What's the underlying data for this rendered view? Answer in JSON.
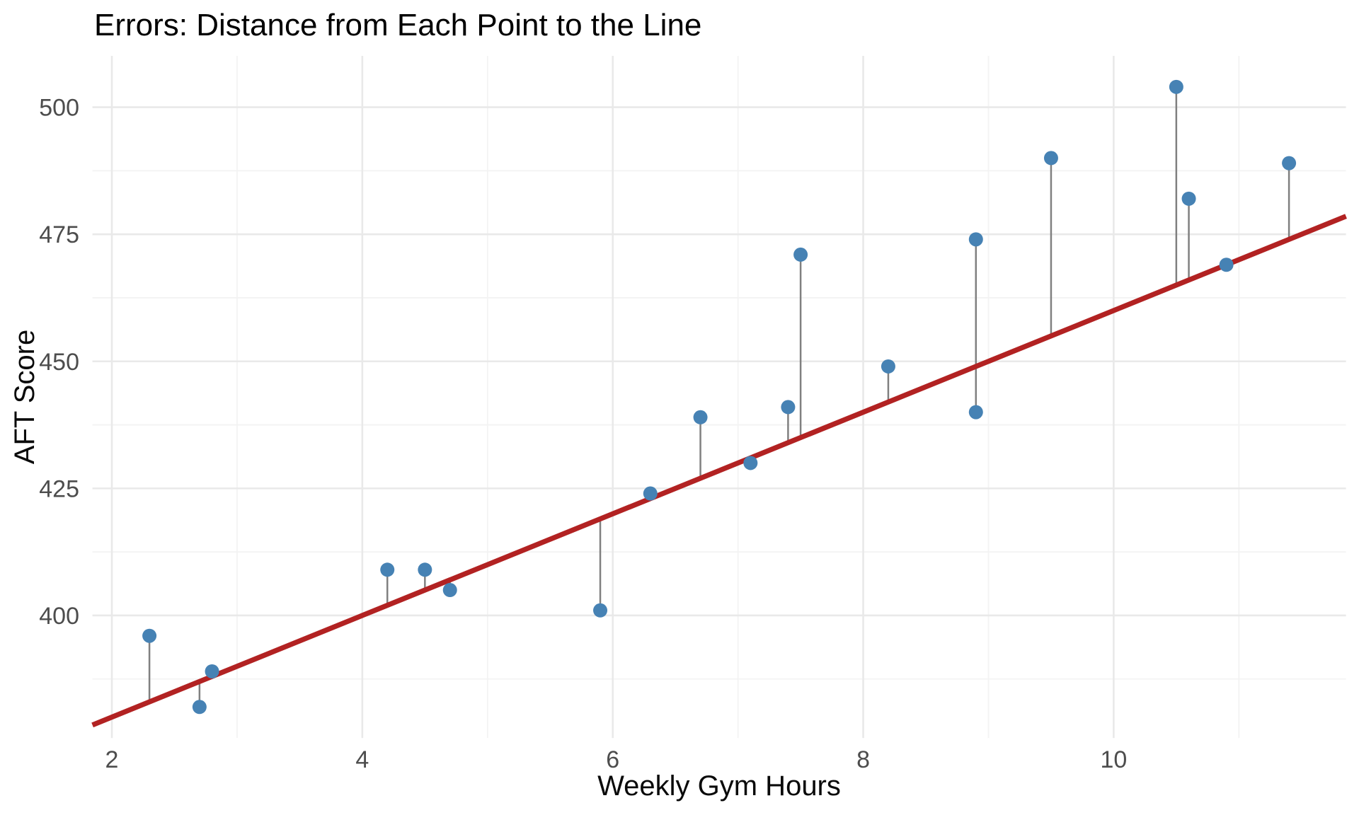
{
  "title": "Errors: Distance from Each Point to the Line",
  "chart_data": {
    "type": "scatter",
    "title": "Errors: Distance from Each Point to the Line",
    "xlabel": "Weekly Gym Hours",
    "ylabel": "AFT Score",
    "xlim": [
      1.845,
      11.855
    ],
    "ylim": [
      375.9,
      510.1
    ],
    "x_major_ticks": [
      2,
      4,
      6,
      8,
      10
    ],
    "x_minor_gridlines": [
      3,
      5,
      7,
      9,
      11
    ],
    "y_major_ticks": [
      400,
      425,
      450,
      475,
      500
    ],
    "y_minor_gridlines": [
      387.5,
      412.5,
      437.5,
      462.5,
      487.5
    ],
    "grid": "on",
    "legend": "none",
    "points": [
      {
        "x": 2.3,
        "y": 396
      },
      {
        "x": 2.7,
        "y": 382
      },
      {
        "x": 2.8,
        "y": 389
      },
      {
        "x": 4.2,
        "y": 409
      },
      {
        "x": 4.5,
        "y": 409
      },
      {
        "x": 4.7,
        "y": 405
      },
      {
        "x": 5.9,
        "y": 401
      },
      {
        "x": 6.3,
        "y": 424
      },
      {
        "x": 6.7,
        "y": 439
      },
      {
        "x": 7.1,
        "y": 430
      },
      {
        "x": 7.4,
        "y": 441
      },
      {
        "x": 7.5,
        "y": 471
      },
      {
        "x": 8.2,
        "y": 449
      },
      {
        "x": 8.9,
        "y": 474
      },
      {
        "x": 8.9,
        "y": 440
      },
      {
        "x": 9.5,
        "y": 490
      },
      {
        "x": 10.5,
        "y": 504
      },
      {
        "x": 10.6,
        "y": 482
      },
      {
        "x": 10.9,
        "y": 469
      },
      {
        "x": 11.4,
        "y": 489
      }
    ],
    "line": {
      "intercept": 360,
      "slope": 10,
      "description": "error segments drawn vertically from each point to this line"
    },
    "colors": {
      "point": "#4682B4",
      "line": "#B22222",
      "segment": "#808080",
      "grid_major": "#E9E9E9",
      "grid_minor": "#F3F3F3",
      "tick_text": "#4d4d4d",
      "background": "#ffffff"
    }
  }
}
